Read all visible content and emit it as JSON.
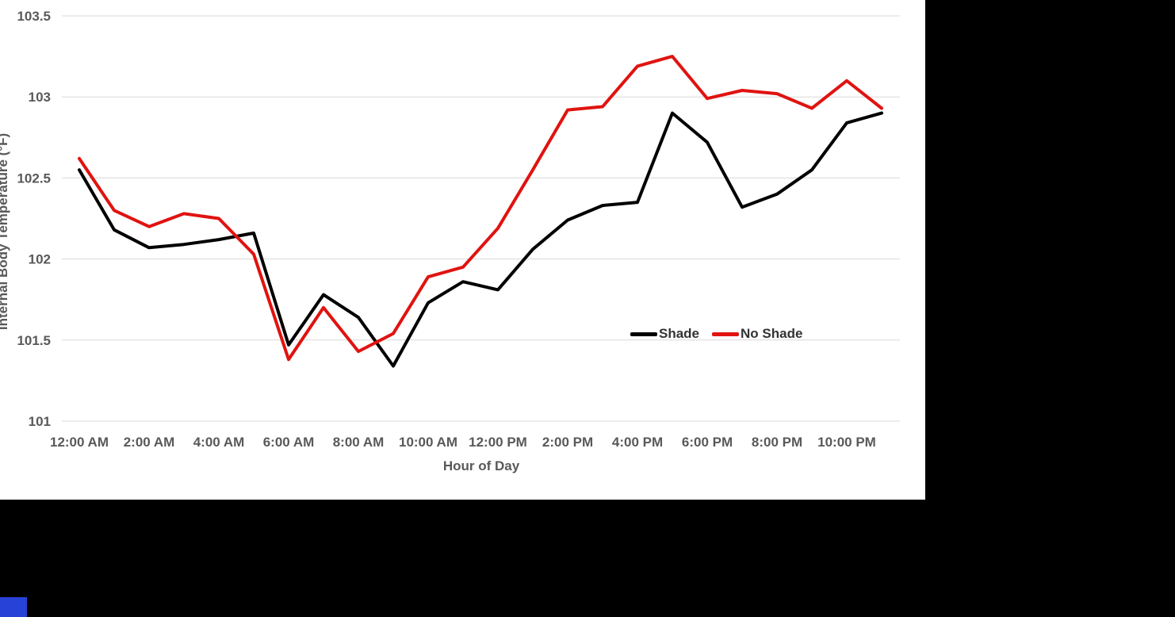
{
  "colors": {
    "chart_background": "#ffffff",
    "letterbox": "#000000",
    "gridline": "#d9d9d9",
    "axis_text": "#595959",
    "legend_text": "#333333",
    "shade_series": "#000000",
    "no_shade_series": "#e01310",
    "corner_accent": "#2742d6"
  },
  "chart_data": {
    "type": "line",
    "title": "",
    "xlabel": "Hour of Day",
    "ylabel": "Internal Body Temperature (°F)",
    "ylim": [
      101,
      103.5
    ],
    "y_ticks": [
      101,
      101.5,
      102,
      102.5,
      103,
      103.5
    ],
    "y_tick_labels": [
      "101",
      "101.5",
      "102",
      "102.5",
      "103",
      "103.5"
    ],
    "x_tick_every": 2,
    "grid": "horizontal",
    "legend_position": "inside-right-middle",
    "categories": [
      "12:00 AM",
      "1:00 AM",
      "2:00 AM",
      "3:00 AM",
      "4:00 AM",
      "5:00 AM",
      "6:00 AM",
      "7:00 AM",
      "8:00 AM",
      "9:00 AM",
      "10:00 AM",
      "11:00 AM",
      "12:00 PM",
      "1:00 PM",
      "2:00 PM",
      "3:00 PM",
      "4:00 PM",
      "5:00 PM",
      "6:00 PM",
      "7:00 PM",
      "8:00 PM",
      "9:00 PM",
      "10:00 PM",
      "11:00 PM"
    ],
    "series": [
      {
        "name": "Shade",
        "color": "#000000",
        "values": [
          102.55,
          102.18,
          102.07,
          102.09,
          102.12,
          102.16,
          101.47,
          101.78,
          101.64,
          101.34,
          101.73,
          101.86,
          101.81,
          102.06,
          102.24,
          102.33,
          102.35,
          102.9,
          102.72,
          102.32,
          102.4,
          102.55,
          102.84,
          102.9
        ]
      },
      {
        "name": "No Shade",
        "color": "#e01310",
        "values": [
          102.62,
          102.3,
          102.2,
          102.28,
          102.25,
          102.03,
          101.38,
          101.7,
          101.43,
          101.54,
          101.89,
          101.95,
          102.19,
          102.55,
          102.92,
          102.94,
          103.19,
          103.25,
          102.99,
          103.04,
          103.02,
          102.93,
          103.1,
          102.93
        ]
      }
    ]
  }
}
